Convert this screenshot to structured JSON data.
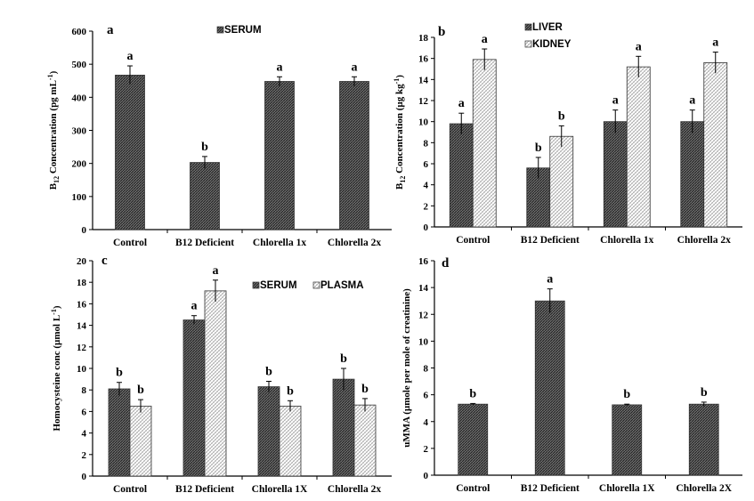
{
  "chart_data": [
    {
      "panel": "a",
      "type": "bar",
      "ylabel": "B12 Concentration (pg mL-1)",
      "ylabel_parts": {
        "pre": "B",
        "sub": "12",
        "post": " Concentration (pg mL",
        "sup": "-1",
        "end": ")"
      },
      "ylim": [
        0,
        600
      ],
      "yticks": [
        0,
        100,
        200,
        300,
        400,
        500,
        600
      ],
      "categories": [
        "Control",
        "B12 Deficient",
        "Chlorella 1x",
        "Chlorella 2x"
      ],
      "series": [
        {
          "name": "SERUM",
          "pattern": "diag",
          "values": [
            467,
            203,
            448,
            448
          ],
          "errors": [
            28,
            18,
            14,
            14
          ],
          "letters": [
            "a",
            "b",
            "a",
            "a"
          ]
        }
      ]
    },
    {
      "panel": "b",
      "type": "bar",
      "ylabel": "B12 Concentration (µg kg-1)",
      "ylabel_parts": {
        "pre": "B",
        "sub": "12",
        "post": " Concentration (µg kg",
        "sup": "-1",
        "end": ")"
      },
      "ylim": [
        0,
        18
      ],
      "yticks": [
        0,
        2,
        4,
        6,
        8,
        10,
        12,
        14,
        16,
        18
      ],
      "categories": [
        "Control",
        "B12 Deficient",
        "Chlorella 1x",
        "Chlorella 2x"
      ],
      "series": [
        {
          "name": "LIVER",
          "pattern": "diag",
          "values": [
            9.8,
            5.6,
            10.0,
            10.0
          ],
          "errors": [
            1.0,
            1.0,
            1.1,
            1.1
          ],
          "letters": [
            "a",
            "b",
            "a",
            "a"
          ]
        },
        {
          "name": "KIDNEY",
          "pattern": "dots",
          "values": [
            15.9,
            8.6,
            15.2,
            15.6
          ],
          "errors": [
            1.0,
            1.0,
            1.0,
            1.0
          ],
          "letters": [
            "a",
            "b",
            "a",
            "a"
          ]
        }
      ]
    },
    {
      "panel": "c",
      "type": "bar",
      "ylabel": "Homocysteine conc (µmol L-1)",
      "ylabel_parts": {
        "pre": "Homocysteine conc (µmol L",
        "sub": "",
        "post": "",
        "sup": "-1",
        "end": ")"
      },
      "ylim": [
        0,
        20
      ],
      "yticks": [
        0,
        2,
        4,
        6,
        8,
        10,
        12,
        14,
        16,
        18,
        20
      ],
      "categories": [
        "Control",
        "B12 Deficient",
        "Chlorella 1X",
        "Chlorella 2x"
      ],
      "series": [
        {
          "name": "SERUM",
          "pattern": "diag",
          "values": [
            8.1,
            14.5,
            8.3,
            9.0
          ],
          "errors": [
            0.6,
            0.4,
            0.5,
            1.0
          ],
          "letters": [
            "b",
            "a",
            "b",
            "b"
          ]
        },
        {
          "name": "PLASMA",
          "pattern": "dots",
          "values": [
            6.5,
            17.2,
            6.5,
            6.6
          ],
          "errors": [
            0.6,
            1.0,
            0.5,
            0.6
          ],
          "letters": [
            "b",
            "a",
            "b",
            "b"
          ]
        }
      ]
    },
    {
      "panel": "d",
      "type": "bar",
      "ylabel": "uMMA (µmole per mole of creatinine)",
      "ylabel_parts": {
        "pre": "uMMA (µmole per mole of creatinine)",
        "sub": "",
        "post": "",
        "sup": "",
        "end": ""
      },
      "ylim": [
        0,
        16
      ],
      "yticks": [
        0,
        2,
        4,
        6,
        8,
        10,
        12,
        14,
        16
      ],
      "categories": [
        "Control",
        "B12 Deficient",
        "Chlorella 1X",
        "Chlorella 2X"
      ],
      "series": [
        {
          "name": "",
          "pattern": "diag",
          "values": [
            5.3,
            13.0,
            5.25,
            5.3
          ],
          "errors": [
            0.05,
            0.9,
            0.05,
            0.15
          ],
          "letters": [
            "b",
            "a",
            "b",
            "b"
          ]
        }
      ]
    }
  ]
}
